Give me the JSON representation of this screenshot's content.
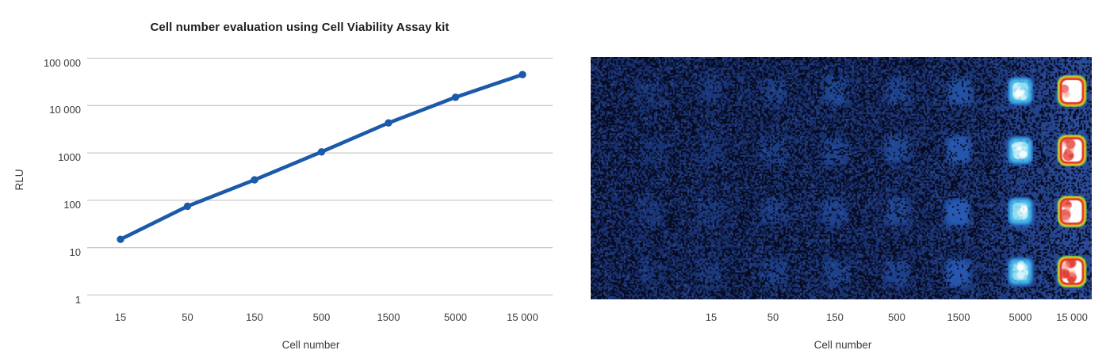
{
  "chart": {
    "title": "Cell number evaluation using Cell Viability Assay kit",
    "xlabel": "Cell number",
    "ylabel": "RLU"
  },
  "chart_data": {
    "type": "line",
    "categories": [
      "15",
      "50",
      "150",
      "500",
      "1500",
      "5000",
      "15 000"
    ],
    "x": [
      15,
      50,
      150,
      500,
      1500,
      5000,
      15000
    ],
    "values": [
      15,
      75,
      270,
      1050,
      4300,
      15000,
      45000
    ],
    "series": [
      {
        "name": "RLU",
        "values": [
          15,
          75,
          270,
          1050,
          4300,
          15000,
          45000
        ]
      }
    ],
    "title": "Cell number evaluation using Cell Viability Assay kit",
    "xlabel": "Cell number",
    "ylabel": "RLU",
    "yscale": "log",
    "ylim": [
      1,
      100000
    ],
    "y_ticks": [
      {
        "v": 100000,
        "label": "100 000"
      },
      {
        "v": 10000,
        "label": "10 000"
      },
      {
        "v": 1000,
        "label": "1000"
      },
      {
        "v": 100,
        "label": "100"
      },
      {
        "v": 10,
        "label": "10"
      },
      {
        "v": 1,
        "label": "1"
      }
    ],
    "grid": "horizontal",
    "legend": "none",
    "marker": "circle"
  },
  "plate": {
    "description": "luminescence well-plate scan, 4 replicate rows, brightness increases with cell number",
    "xlabel": "Cell number",
    "rows": 4,
    "columns": [
      {
        "label": "",
        "level": 0.07
      },
      {
        "label": "15",
        "level": 0.11
      },
      {
        "label": "50",
        "level": 0.17
      },
      {
        "label": "150",
        "level": 0.23
      },
      {
        "label": "500",
        "level": 0.27
      },
      {
        "label": "1500",
        "level": 0.45
      },
      {
        "label": "5000",
        "level": 0.75
      },
      {
        "label": "15 000",
        "level": 1.0
      }
    ]
  },
  "colors": {
    "line": "#1a5aa9",
    "grid": "#cacaca",
    "tick_text": "#3a3a3a",
    "title_text": "#1e1e1e",
    "plate_bg": "#18306e",
    "plate_speckle": "#070c22",
    "plate_fleck": "#3c62b4",
    "well_blue": "#2e6fd6",
    "well_cyan_mid": "#49b4e4",
    "well_cyan_light": "#8fdcf4",
    "well_ring_green": "#7dc437",
    "well_ring_yellow": "#f2e426",
    "well_ring_orange": "#f08c1c",
    "well_ring_red": "#e23428",
    "well_core_white": "#ffffff"
  }
}
